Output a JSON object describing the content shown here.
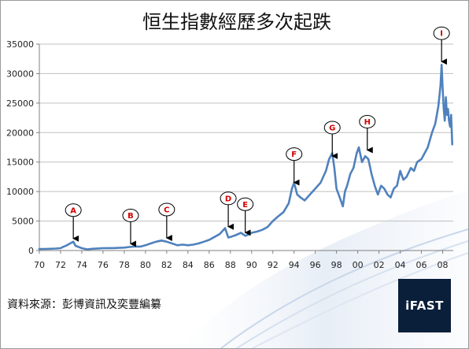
{
  "chart_data": {
    "type": "line",
    "title": "恒生指數經歷多次起跌",
    "xlabel": "",
    "ylabel": "",
    "xlim": [
      1970,
      2009
    ],
    "ylim": [
      0,
      35000
    ],
    "x_ticks": [
      1970,
      1972,
      1974,
      1976,
      1978,
      1980,
      1982,
      1984,
      1986,
      1988,
      1990,
      1992,
      1994,
      1996,
      1998,
      2000,
      2002,
      2004,
      2006,
      2008
    ],
    "x_tick_labels": [
      "70",
      "72",
      "74",
      "76",
      "78",
      "80",
      "82",
      "84",
      "86",
      "88",
      "90",
      "92",
      "94",
      "96",
      "98",
      "00",
      "02",
      "04",
      "06",
      "08"
    ],
    "y_ticks": [
      0,
      5000,
      10000,
      15000,
      20000,
      25000,
      30000,
      35000
    ],
    "y_tick_labels": [
      "0",
      "5000",
      "10000",
      "15000",
      "20000",
      "25000",
      "30000",
      "35000"
    ],
    "grid": true,
    "series": [
      {
        "color": "#4f81bd",
        "x": [
          1970.0,
          1970.5,
          1971.0,
          1971.5,
          1972.0,
          1972.3,
          1972.6,
          1972.9,
          1973.2,
          1973.4,
          1973.7,
          1974.0,
          1974.5,
          1975.0,
          1975.5,
          1976.0,
          1976.5,
          1977.0,
          1977.5,
          1978.0,
          1978.5,
          1979.0,
          1979.5,
          1980.0,
          1980.5,
          1981.0,
          1981.5,
          1982.0,
          1982.5,
          1983.0,
          1983.5,
          1984.0,
          1984.5,
          1985.0,
          1985.5,
          1986.0,
          1986.5,
          1987.0,
          1987.5,
          1987.8,
          1988.0,
          1988.5,
          1989.0,
          1989.4,
          1989.7,
          1990.0,
          1990.5,
          1991.0,
          1991.5,
          1992.0,
          1992.5,
          1993.0,
          1993.5,
          1993.8,
          1994.0,
          1994.3,
          1994.6,
          1995.0,
          1995.5,
          1996.0,
          1996.5,
          1997.0,
          1997.3,
          1997.6,
          1997.8,
          1998.0,
          1998.3,
          1998.6,
          1998.8,
          1999.0,
          1999.3,
          1999.6,
          1999.9,
          2000.1,
          2000.4,
          2000.7,
          2001.0,
          2001.3,
          2001.6,
          2001.9,
          2002.2,
          2002.5,
          2002.8,
          2003.1,
          2003.4,
          2003.7,
          2004.0,
          2004.3,
          2004.6,
          2005.0,
          2005.3,
          2005.6,
          2006.0,
          2006.3,
          2006.6,
          2007.0,
          2007.3,
          2007.6,
          2007.8,
          2007.9,
          2008.0,
          2008.1,
          2008.2,
          2008.3,
          2008.4,
          2008.5,
          2008.6,
          2008.7,
          2008.8,
          2008.9
        ],
        "y": [
          250,
          270,
          300,
          330,
          400,
          650,
          900,
          1200,
          1500,
          800,
          600,
          400,
          200,
          300,
          350,
          400,
          420,
          420,
          450,
          500,
          600,
          700,
          650,
          900,
          1200,
          1500,
          1700,
          1500,
          1200,
          900,
          1000,
          900,
          1000,
          1200,
          1500,
          1800,
          2300,
          2800,
          3800,
          2200,
          2300,
          2600,
          3000,
          2500,
          2700,
          3000,
          3200,
          3500,
          4000,
          5000,
          5800,
          6500,
          8000,
          10500,
          11500,
          9500,
          9000,
          8500,
          9500,
          10500,
          11500,
          13500,
          15500,
          16500,
          14000,
          10500,
          9000,
          7500,
          10000,
          11000,
          13000,
          14000,
          16500,
          17500,
          15000,
          16000,
          15500,
          13000,
          11000,
          9500,
          11000,
          10500,
          9500,
          9000,
          10500,
          11000,
          13500,
          12000,
          12500,
          14000,
          13500,
          15000,
          15500,
          16500,
          17500,
          20000,
          21500,
          24500,
          28000,
          31500,
          27500,
          24000,
          22000,
          26000,
          23000,
          24000,
          22000,
          21000,
          23000,
          18000
        ]
      }
    ],
    "annotations": [
      {
        "label": "A",
        "x": 1973.2,
        "y": 1500
      },
      {
        "label": "B",
        "x": 1978.6,
        "y": 600
      },
      {
        "label": "C",
        "x": 1982.0,
        "y": 1600
      },
      {
        "label": "D",
        "x": 1987.8,
        "y": 3500
      },
      {
        "label": "E",
        "x": 1989.4,
        "y": 2500
      },
      {
        "label": "F",
        "x": 1994.0,
        "y": 11000
      },
      {
        "label": "G",
        "x": 1997.6,
        "y": 15500
      },
      {
        "label": "H",
        "x": 2000.9,
        "y": 16500
      },
      {
        "label": "I",
        "x": 2007.9,
        "y": 31500
      }
    ]
  },
  "footer": {
    "source": "資料來源：彭博資訊及奕豐編纂",
    "brand": "iFAST"
  }
}
